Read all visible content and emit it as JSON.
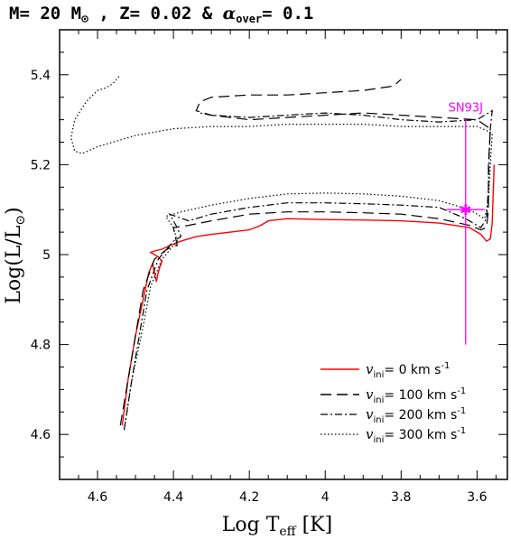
{
  "chart_data": {
    "type": "line",
    "title": {
      "parts": [
        "M= 20 M",
        "⊙",
        " , Z= 0.02 & ",
        "α",
        "over",
        "= 0.1"
      ]
    },
    "xlabel": {
      "main": "Log T",
      "sub": "eff",
      "unit": " [K]"
    },
    "ylabel": {
      "main": "Log(L/L",
      "sub": "⊙",
      "close": ")"
    },
    "xlim": [
      4.7,
      3.52
    ],
    "ylim": [
      4.5,
      5.5
    ],
    "x_ticks": [
      4.6,
      4.4,
      4.2,
      4,
      3.8,
      3.6
    ],
    "x_tick_labels": [
      "4.6",
      "4.4",
      "4.2",
      "4",
      "3.8",
      "3.6"
    ],
    "y_ticks": [
      4.6,
      4.8,
      5,
      5.2,
      5.4
    ],
    "y_tick_labels": [
      "4.6",
      "4.8",
      "5",
      "5.2",
      "5.4"
    ],
    "legend_position": "bottom-right",
    "legend": [
      {
        "v": "v",
        "sub": "ini",
        "text": "= 0 km s",
        "sup": "-1"
      },
      {
        "v": "v",
        "sub": "ini",
        "text": "= 100 km s",
        "sup": "-1"
      },
      {
        "v": "v",
        "sub": "ini",
        "text": "= 200 km s",
        "sup": "-1"
      },
      {
        "v": "v",
        "sub": "ini",
        "text": "= 300 km s",
        "sup": "-1"
      }
    ],
    "series": [
      {
        "style": "solid",
        "color": "#ff0000",
        "points": [
          [
            4.535,
            4.62
          ],
          [
            4.52,
            4.72
          ],
          [
            4.5,
            4.82
          ],
          [
            4.48,
            4.9
          ],
          [
            4.465,
            4.96
          ],
          [
            4.455,
            4.98
          ],
          [
            4.45,
            4.96
          ],
          [
            4.445,
            4.94
          ],
          [
            4.44,
            4.96
          ],
          [
            4.435,
            4.975
          ],
          [
            4.43,
            4.985
          ],
          [
            4.44,
            4.995
          ],
          [
            4.46,
            5.005
          ],
          [
            4.45,
            5.008
          ],
          [
            4.43,
            5.012
          ],
          [
            4.41,
            5.02
          ],
          [
            4.38,
            5.03
          ],
          [
            4.34,
            5.04
          ],
          [
            4.3,
            5.045
          ],
          [
            4.25,
            5.05
          ],
          [
            4.2,
            5.055
          ],
          [
            4.17,
            5.065
          ],
          [
            4.15,
            5.075
          ],
          [
            4.1,
            5.08
          ],
          [
            4.0,
            5.078
          ],
          [
            3.9,
            5.077
          ],
          [
            3.8,
            5.075
          ],
          [
            3.7,
            5.07
          ],
          [
            3.62,
            5.06
          ],
          [
            3.59,
            5.045
          ],
          [
            3.575,
            5.03
          ],
          [
            3.565,
            5.035
          ],
          [
            3.56,
            5.07
          ],
          [
            3.558,
            5.12
          ],
          [
            3.556,
            5.17
          ],
          [
            3.555,
            5.2
          ]
        ]
      },
      {
        "style": "dashed",
        "color": "#000000",
        "points": [
          [
            4.54,
            4.62
          ],
          [
            4.52,
            4.72
          ],
          [
            4.5,
            4.82
          ],
          [
            4.48,
            4.92
          ],
          [
            4.45,
            4.99
          ],
          [
            4.42,
            5.01
          ],
          [
            4.4,
            5.02
          ],
          [
            4.39,
            5.02
          ],
          [
            4.395,
            5.04
          ],
          [
            4.4,
            5.06
          ],
          [
            4.36,
            5.065
          ],
          [
            4.3,
            5.075
          ],
          [
            4.2,
            5.09
          ],
          [
            4.1,
            5.095
          ],
          [
            4.0,
            5.095
          ],
          [
            3.9,
            5.093
          ],
          [
            3.8,
            5.09
          ],
          [
            3.7,
            5.08
          ],
          [
            3.62,
            5.065
          ],
          [
            3.59,
            5.055
          ],
          [
            3.575,
            5.06
          ],
          [
            3.57,
            5.1
          ],
          [
            3.57,
            5.2
          ],
          [
            3.565,
            5.28
          ],
          [
            3.6,
            5.3
          ],
          [
            3.7,
            5.305
          ],
          [
            3.8,
            5.31
          ],
          [
            3.9,
            5.315
          ],
          [
            4.0,
            5.31
          ],
          [
            4.1,
            5.305
          ],
          [
            4.2,
            5.3
          ],
          [
            4.3,
            5.31
          ],
          [
            4.34,
            5.32
          ],
          [
            4.33,
            5.34
          ],
          [
            4.3,
            5.35
          ],
          [
            4.2,
            5.355
          ],
          [
            4.1,
            5.355
          ],
          [
            4.0,
            5.36
          ],
          [
            3.9,
            5.365
          ],
          [
            3.82,
            5.375
          ],
          [
            3.8,
            5.39
          ]
        ]
      },
      {
        "style": "dashdot",
        "color": "#000000",
        "points": [
          [
            4.53,
            4.61
          ],
          [
            4.51,
            4.72
          ],
          [
            4.49,
            4.82
          ],
          [
            4.47,
            4.92
          ],
          [
            4.44,
            4.99
          ],
          [
            4.42,
            5.01
          ],
          [
            4.4,
            5.03
          ],
          [
            4.38,
            5.04
          ],
          [
            4.39,
            5.06
          ],
          [
            4.41,
            5.09
          ],
          [
            4.36,
            5.075
          ],
          [
            4.3,
            5.09
          ],
          [
            4.2,
            5.105
          ],
          [
            4.1,
            5.115
          ],
          [
            4.0,
            5.115
          ],
          [
            3.9,
            5.113
          ],
          [
            3.8,
            5.11
          ],
          [
            3.7,
            5.105
          ],
          [
            3.63,
            5.08
          ],
          [
            3.59,
            5.06
          ],
          [
            3.575,
            5.08
          ],
          [
            3.57,
            5.15
          ],
          [
            3.568,
            5.22
          ],
          [
            3.565,
            5.28
          ],
          [
            3.56,
            5.32
          ],
          [
            3.6,
            5.3
          ],
          [
            3.7,
            5.295
          ],
          [
            3.8,
            5.3
          ],
          [
            3.9,
            5.31
          ],
          [
            4.0,
            5.315
          ],
          [
            4.1,
            5.31
          ],
          [
            4.2,
            5.305
          ],
          [
            4.3,
            5.31
          ],
          [
            4.33,
            5.315
          ]
        ]
      },
      {
        "style": "dotted",
        "color": "#000000",
        "points": [
          [
            4.53,
            4.61
          ],
          [
            4.51,
            4.72
          ],
          [
            4.48,
            4.84
          ],
          [
            4.46,
            4.93
          ],
          [
            4.43,
            4.99
          ],
          [
            4.41,
            5.01
          ],
          [
            4.39,
            5.03
          ],
          [
            4.4,
            5.06
          ],
          [
            4.42,
            5.085
          ],
          [
            4.38,
            5.095
          ],
          [
            4.3,
            5.11
          ],
          [
            4.2,
            5.125
          ],
          [
            4.1,
            5.135
          ],
          [
            4.0,
            5.137
          ],
          [
            3.9,
            5.135
          ],
          [
            3.8,
            5.13
          ],
          [
            3.7,
            5.12
          ],
          [
            3.62,
            5.1
          ],
          [
            3.58,
            5.08
          ],
          [
            3.57,
            5.12
          ],
          [
            3.565,
            5.2
          ],
          [
            3.56,
            5.27
          ],
          [
            3.6,
            5.285
          ],
          [
            3.7,
            5.285
          ],
          [
            3.8,
            5.285
          ],
          [
            3.9,
            5.29
          ],
          [
            4.0,
            5.29
          ],
          [
            4.1,
            5.29
          ],
          [
            4.2,
            5.285
          ],
          [
            4.3,
            5.285
          ],
          [
            4.4,
            5.28
          ],
          [
            4.5,
            5.265
          ],
          [
            4.6,
            5.24
          ],
          [
            4.64,
            5.225
          ],
          [
            4.66,
            5.23
          ],
          [
            4.67,
            5.26
          ],
          [
            4.66,
            5.3
          ],
          [
            4.63,
            5.34
          ],
          [
            4.6,
            5.365
          ],
          [
            4.58,
            5.37
          ],
          [
            4.56,
            5.38
          ],
          [
            4.545,
            5.395
          ],
          [
            4.54,
            5.4
          ]
        ]
      }
    ],
    "observation": {
      "label": "SN93J",
      "x": 3.63,
      "y": 5.1,
      "x_err": 0.05,
      "y_err_low": 0.3,
      "y_err_high": 0.2,
      "color": "#ff00ff"
    }
  }
}
